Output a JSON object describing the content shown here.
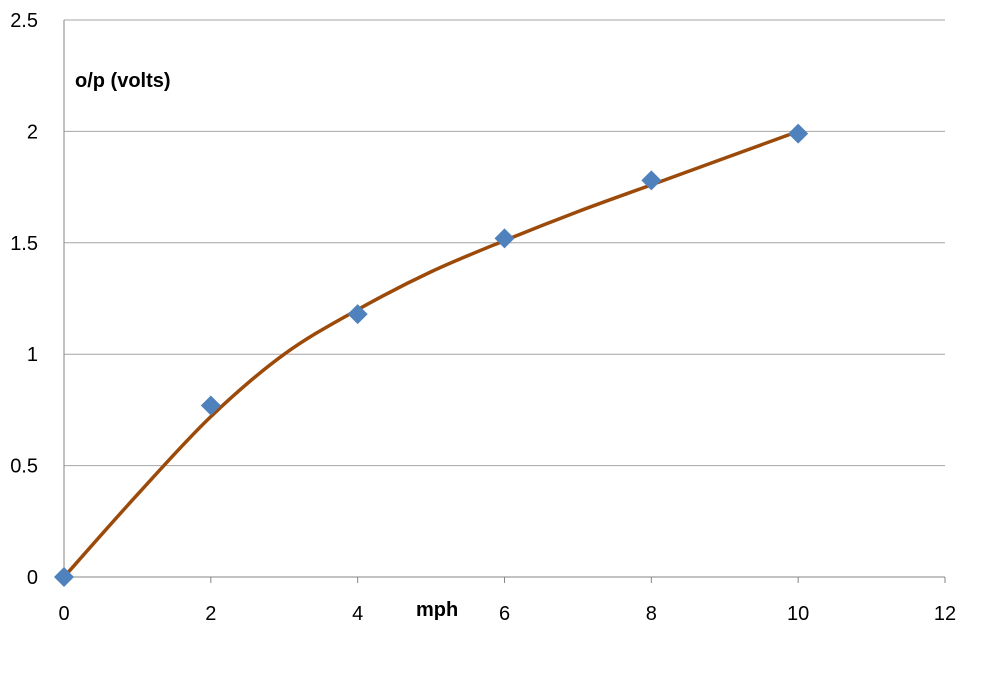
{
  "chart_data": {
    "type": "scatter",
    "title": "",
    "xlabel": "mph",
    "ylabel": "o/p (volts)",
    "xlim": [
      0,
      12
    ],
    "ylim": [
      0,
      2.5
    ],
    "x_ticks": [
      "0",
      "2",
      "4",
      "6",
      "8",
      "10",
      "12"
    ],
    "y_ticks": [
      "0",
      "0.5",
      "1",
      "1.5",
      "2",
      "2.5"
    ],
    "grid": "horizontal",
    "legend": "none",
    "series": [
      {
        "marker": "diamond",
        "color": "#4F81BD",
        "points": [
          {
            "x": 0,
            "y": 0
          },
          {
            "x": 2,
            "y": 0.77
          },
          {
            "x": 4,
            "y": 1.18
          },
          {
            "x": 6,
            "y": 1.52
          },
          {
            "x": 8,
            "y": 1.78
          },
          {
            "x": 10,
            "y": 1.99
          }
        ]
      }
    ],
    "trendline": {
      "type": "smooth",
      "color": "#9C4A0A",
      "points": [
        {
          "x": 0,
          "y": 0
        },
        {
          "x": 1,
          "y": 0.37
        },
        {
          "x": 2,
          "y": 0.72
        },
        {
          "x": 3,
          "y": 1.0
        },
        {
          "x": 4,
          "y": 1.2
        },
        {
          "x": 5,
          "y": 1.37
        },
        {
          "x": 6,
          "y": 1.51
        },
        {
          "x": 7,
          "y": 1.64
        },
        {
          "x": 8,
          "y": 1.76
        },
        {
          "x": 9,
          "y": 1.88
        },
        {
          "x": 10,
          "y": 2.0
        }
      ]
    },
    "colors": {
      "gridline": "#A6A6A6",
      "axis": "#868686"
    }
  }
}
